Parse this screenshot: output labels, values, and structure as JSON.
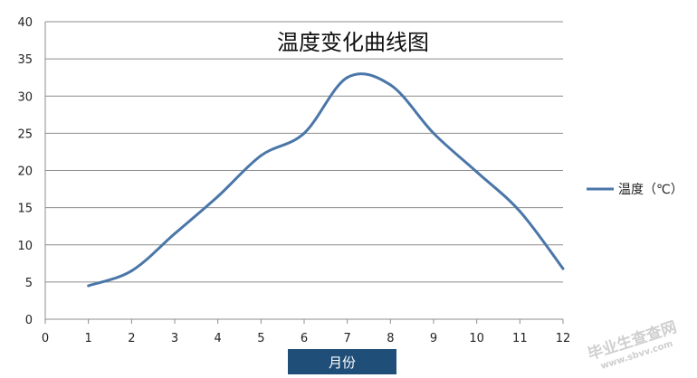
{
  "chart_data": {
    "type": "line",
    "title": "温度变化曲线图",
    "xlabel": "月份",
    "ylabel": "",
    "xlim": [
      0,
      12
    ],
    "ylim": [
      0,
      40
    ],
    "x_ticks": [
      0,
      1,
      2,
      3,
      4,
      5,
      6,
      7,
      8,
      9,
      10,
      11,
      12
    ],
    "y_ticks": [
      0,
      5,
      10,
      15,
      20,
      25,
      30,
      35,
      40
    ],
    "grid": "horizontal",
    "legend": "right",
    "smooth": true,
    "series": [
      {
        "name": "温度（℃）",
        "color": "#4A76A8",
        "x": [
          1,
          2,
          3,
          4,
          5,
          6,
          7,
          8,
          9,
          10,
          11,
          12
        ],
        "y": [
          4.5,
          6.5,
          11.5,
          16.5,
          22,
          25,
          32.5,
          31.5,
          25,
          19.8,
          14.5,
          6.8
        ]
      }
    ]
  },
  "watermark": {
    "line1": "毕业生查查网",
    "line2": "www.sbvv.com"
  }
}
